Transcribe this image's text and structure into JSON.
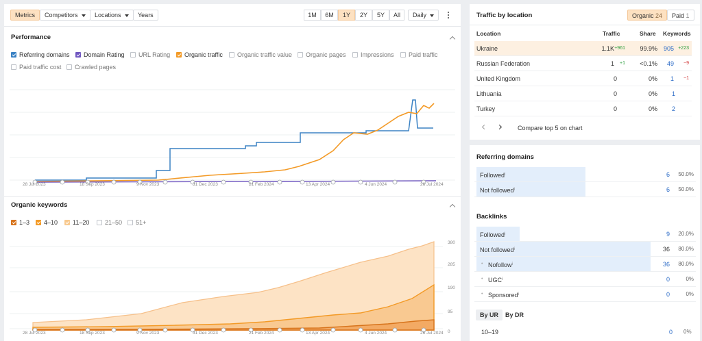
{
  "toolbar": {
    "metrics": "Metrics",
    "competitors": "Competitors",
    "locations": "Locations",
    "years": "Years",
    "ranges": [
      "1M",
      "6M",
      "1Y",
      "2Y",
      "5Y",
      "All"
    ],
    "active_range": "1Y",
    "interval": "Daily"
  },
  "performance": {
    "title": "Performance",
    "checkboxes": [
      {
        "label": "Referring domains",
        "checked": true,
        "color": "#3b82c4"
      },
      {
        "label": "Domain Rating",
        "checked": true,
        "color": "#6f56c0"
      },
      {
        "label": "URL Rating",
        "checked": false
      },
      {
        "label": "Organic traffic",
        "checked": true,
        "color": "#f39a26"
      },
      {
        "label": "Organic traffic value",
        "checked": false
      },
      {
        "label": "Organic pages",
        "checked": false
      },
      {
        "label": "Impressions",
        "checked": false
      },
      {
        "label": "Paid traffic",
        "checked": false
      },
      {
        "label": "Paid traffic cost",
        "checked": false
      },
      {
        "label": "Crawled pages",
        "checked": false
      }
    ],
    "x_labels": [
      "28 Jul 2023",
      "18 Sep 2023",
      "9 Nov 2023",
      "31 Dec 2023",
      "21 Feb 2024",
      "13 Apr 2024",
      "4 Jun 2024",
      "26 Jul 2024"
    ]
  },
  "organic_keywords": {
    "title": "Organic keywords",
    "checkboxes": [
      {
        "label": "1–3",
        "checked": true,
        "color": "#d7731b"
      },
      {
        "label": "4–10",
        "checked": true,
        "color": "#f39a26"
      },
      {
        "label": "11–20",
        "checked": true,
        "color": "#f8c98e"
      },
      {
        "label": "21–50",
        "checked": false
      },
      {
        "label": "51+",
        "checked": false
      }
    ],
    "y_labels": [
      "380",
      "285",
      "190",
      "95",
      "0"
    ],
    "x_labels": [
      "28 Jul 2023",
      "18 Sep 2023",
      "9 Nov 2023",
      "31 Dec 2023",
      "21 Feb 2024",
      "13 Apr 2024",
      "4 Jun 2024",
      "26 Jul 2024"
    ]
  },
  "traffic_by_location": {
    "title": "Traffic by location",
    "tab_organic": "Organic",
    "tab_organic_count": "24",
    "tab_paid": "Paid",
    "tab_paid_count": "1",
    "columns": [
      "Location",
      "Traffic",
      "Share",
      "Keywords"
    ],
    "rows": [
      {
        "location": "Ukraine",
        "traffic": "1.1K",
        "traffic_delta": "+961",
        "share": "99.9%",
        "keywords": "905",
        "kw_delta": "+223"
      },
      {
        "location": "Russian Federation",
        "traffic": "1",
        "traffic_delta": "+1",
        "share": "<0.1%",
        "keywords": "49",
        "kw_delta": "−9"
      },
      {
        "location": "United Kingdom",
        "traffic": "0",
        "traffic_delta": "",
        "share": "0%",
        "keywords": "1",
        "kw_delta": "−1"
      },
      {
        "location": "Lithuania",
        "traffic": "0",
        "traffic_delta": "",
        "share": "0%",
        "keywords": "1",
        "kw_delta": ""
      },
      {
        "location": "Turkey",
        "traffic": "0",
        "traffic_delta": "",
        "share": "0%",
        "keywords": "2",
        "kw_delta": ""
      }
    ],
    "compare_label": "Compare top 5 on chart"
  },
  "referring_domains": {
    "title": "Referring domains",
    "rows": [
      {
        "label": "Followed",
        "value": "6",
        "pct": "50.0%",
        "fill": 0.5
      },
      {
        "label": "Not followed",
        "value": "6",
        "pct": "50.0%",
        "fill": 0.5
      }
    ]
  },
  "backlinks": {
    "title": "Backlinks",
    "rows": [
      {
        "label": "Followed",
        "value": "9",
        "pct": "20.0%",
        "fill": 0.2,
        "indent": false
      },
      {
        "label": "Not followed",
        "value": "36",
        "pct": "80.0%",
        "fill": 0.8,
        "indent": false
      },
      {
        "label": "Nofollow",
        "value": "36",
        "pct": "80.0%",
        "fill": 0.8,
        "indent": true
      },
      {
        "label": "UGC",
        "value": "0",
        "pct": "0%",
        "fill": 0,
        "indent": true
      },
      {
        "label": "Sponsored",
        "value": "0",
        "pct": "0%",
        "fill": 0,
        "indent": true
      }
    ]
  },
  "ur_tabs": {
    "by_ur": "By UR",
    "by_dr": "By DR"
  },
  "ur_first_row": "10–19",
  "ur_first_row_value": "0",
  "ur_first_row_pct": "0%"
}
